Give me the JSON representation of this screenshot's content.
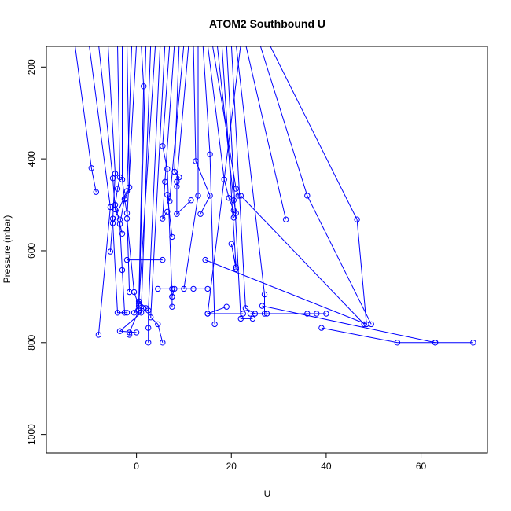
{
  "chart_data": {
    "type": "line",
    "title": "ATOM2 Southbound U",
    "xlabel": "U",
    "ylabel": "Pressure (mbar)",
    "xlim": [
      -19,
      74
    ],
    "ylim": [
      1040,
      155
    ],
    "y_reversed": true,
    "grid": false,
    "legend": "none",
    "color": "#0000ff",
    "x_ticks": [
      0,
      20,
      40,
      60
    ],
    "x_tick_labels": [
      "0",
      "20",
      "40",
      "60"
    ],
    "y_ticks": [
      200,
      400,
      600,
      800,
      1000
    ],
    "y_tick_labels": [
      "200",
      "400",
      "600",
      "800",
      "1000"
    ],
    "series": [
      {
        "x": [
          -13,
          -9.5,
          -8.5
        ],
        "y": [
          150,
          420,
          472
        ]
      },
      {
        "x": [
          -10,
          -5.5,
          -8
        ],
        "y": [
          150,
          505,
          783
        ]
      },
      {
        "x": [
          -8,
          -5,
          -4.5,
          -3.5
        ],
        "y": [
          150,
          442,
          510,
          532
        ]
      },
      {
        "x": [
          -6,
          -4.5,
          -5,
          -5.5
        ],
        "y": [
          150,
          432,
          530,
          602
        ]
      },
      {
        "x": [
          -4,
          -3.5,
          -4,
          -4.5,
          -3
        ],
        "y": [
          150,
          440,
          465,
          500,
          563
        ]
      },
      {
        "x": [
          -3,
          -3,
          -2.5,
          -3.5,
          -3,
          -2.5
        ],
        "y": [
          150,
          445,
          487,
          542,
          642,
          735
        ]
      },
      {
        "x": [
          -2,
          -1.5,
          -2.5,
          -2,
          -1.5
        ],
        "y": [
          150,
          462,
          488,
          518,
          690
        ]
      },
      {
        "x": [
          -1,
          -2,
          -5,
          -4,
          -2
        ],
        "y": [
          150,
          470,
          540,
          735,
          735
        ]
      },
      {
        "x": [
          0,
          -2,
          -0.5,
          0.5
        ],
        "y": [
          150,
          530,
          690,
          720
        ]
      },
      {
        "x": [
          1,
          1.5,
          0.5,
          2
        ],
        "y": [
          150,
          242,
          710,
          725
        ]
      },
      {
        "x": [
          2,
          0.5,
          -1.5,
          -1.5
        ],
        "y": [
          150,
          730,
          778,
          783
        ]
      },
      {
        "x": [
          3,
          1,
          -3.5,
          0
        ],
        "y": [
          150,
          735,
          775,
          778
        ]
      },
      {
        "x": [
          4,
          0.5,
          -0.5,
          1.5
        ],
        "y": [
          150,
          715,
          735,
          725
        ]
      },
      {
        "x": [
          5,
          2.5,
          2.5,
          2.5
        ],
        "y": [
          150,
          730,
          768,
          800
        ]
      },
      {
        "x": [
          6,
          3,
          4.5,
          5.5
        ],
        "y": [
          150,
          745,
          760,
          800
        ]
      },
      {
        "x": [
          7,
          5.5,
          6.5,
          7.5,
          7.5
        ],
        "y": [
          150,
          372,
          422,
          700,
          722
        ]
      },
      {
        "x": [
          8,
          6,
          5.5,
          6.5
        ],
        "y": [
          150,
          450,
          530,
          515
        ]
      },
      {
        "x": [
          9,
          8,
          9,
          8.5
        ],
        "y": [
          150,
          428,
          440,
          460
        ]
      },
      {
        "x": [
          10,
          7,
          6.5,
          7.5
        ],
        "y": [
          150,
          492,
          478,
          570
        ]
      },
      {
        "x": [
          11,
          8.5,
          8.5,
          11.5
        ],
        "y": [
          150,
          450,
          520,
          490
        ]
      },
      {
        "x": [
          12,
          12.5,
          15.5,
          13.5
        ],
        "y": [
          150,
          405,
          480,
          520
        ]
      },
      {
        "x": [
          13,
          13,
          10,
          12
        ],
        "y": [
          150,
          480,
          683,
          683
        ]
      },
      {
        "x": [
          14,
          15.5,
          16.5
        ],
        "y": [
          150,
          390,
          760
        ]
      },
      {
        "x": [
          15,
          18.5,
          19.5,
          20.5
        ],
        "y": [
          150,
          445,
          485,
          512
        ]
      },
      {
        "x": [
          16,
          21,
          21.5
        ],
        "y": [
          150,
          465,
          480
        ]
      },
      {
        "x": [
          17,
          20.5,
          21,
          20.5
        ],
        "y": [
          150,
          490,
          518,
          528
        ]
      },
      {
        "x": [
          18,
          21,
          20,
          21
        ],
        "y": [
          150,
          636,
          585,
          640
        ]
      },
      {
        "x": [
          19,
          22,
          24.5
        ],
        "y": [
          150,
          748,
          748
        ]
      },
      {
        "x": [
          20,
          23,
          25,
          27.5
        ],
        "y": [
          150,
          725,
          737,
          737
        ]
      },
      {
        "x": [
          21,
          27,
          27
        ],
        "y": [
          150,
          695,
          737
        ]
      },
      {
        "x": [
          22,
          15,
          19
        ],
        "y": [
          150,
          737,
          722
        ]
      },
      {
        "x": [
          23,
          31.5
        ],
        "y": [
          150,
          532
        ]
      },
      {
        "x": [
          26,
          36,
          49.5
        ],
        "y": [
          150,
          480,
          760
        ]
      },
      {
        "x": [
          28,
          46.5,
          48.5
        ],
        "y": [
          150,
          532,
          760
        ]
      },
      {
        "x": [
          -2,
          5.5
        ],
        "y": [
          620,
          620
        ]
      },
      {
        "x": [
          14.5,
          48.5
        ],
        "y": [
          620,
          760
        ]
      },
      {
        "x": [
          22,
          48
        ],
        "y": [
          480,
          760
        ]
      },
      {
        "x": [
          4.5,
          7.5,
          15
        ],
        "y": [
          683,
          683,
          683
        ]
      },
      {
        "x": [
          8,
          7.5
        ],
        "y": [
          683,
          700
        ]
      },
      {
        "x": [
          24,
          36,
          38,
          40
        ],
        "y": [
          737,
          737,
          737,
          737
        ]
      },
      {
        "x": [
          39,
          55,
          63,
          71
        ],
        "y": [
          768,
          800,
          800,
          800
        ]
      },
      {
        "x": [
          26.5,
          63
        ],
        "y": [
          720,
          800
        ]
      },
      {
        "x": [
          15,
          22.5
        ],
        "y": [
          737,
          737
        ]
      }
    ]
  }
}
